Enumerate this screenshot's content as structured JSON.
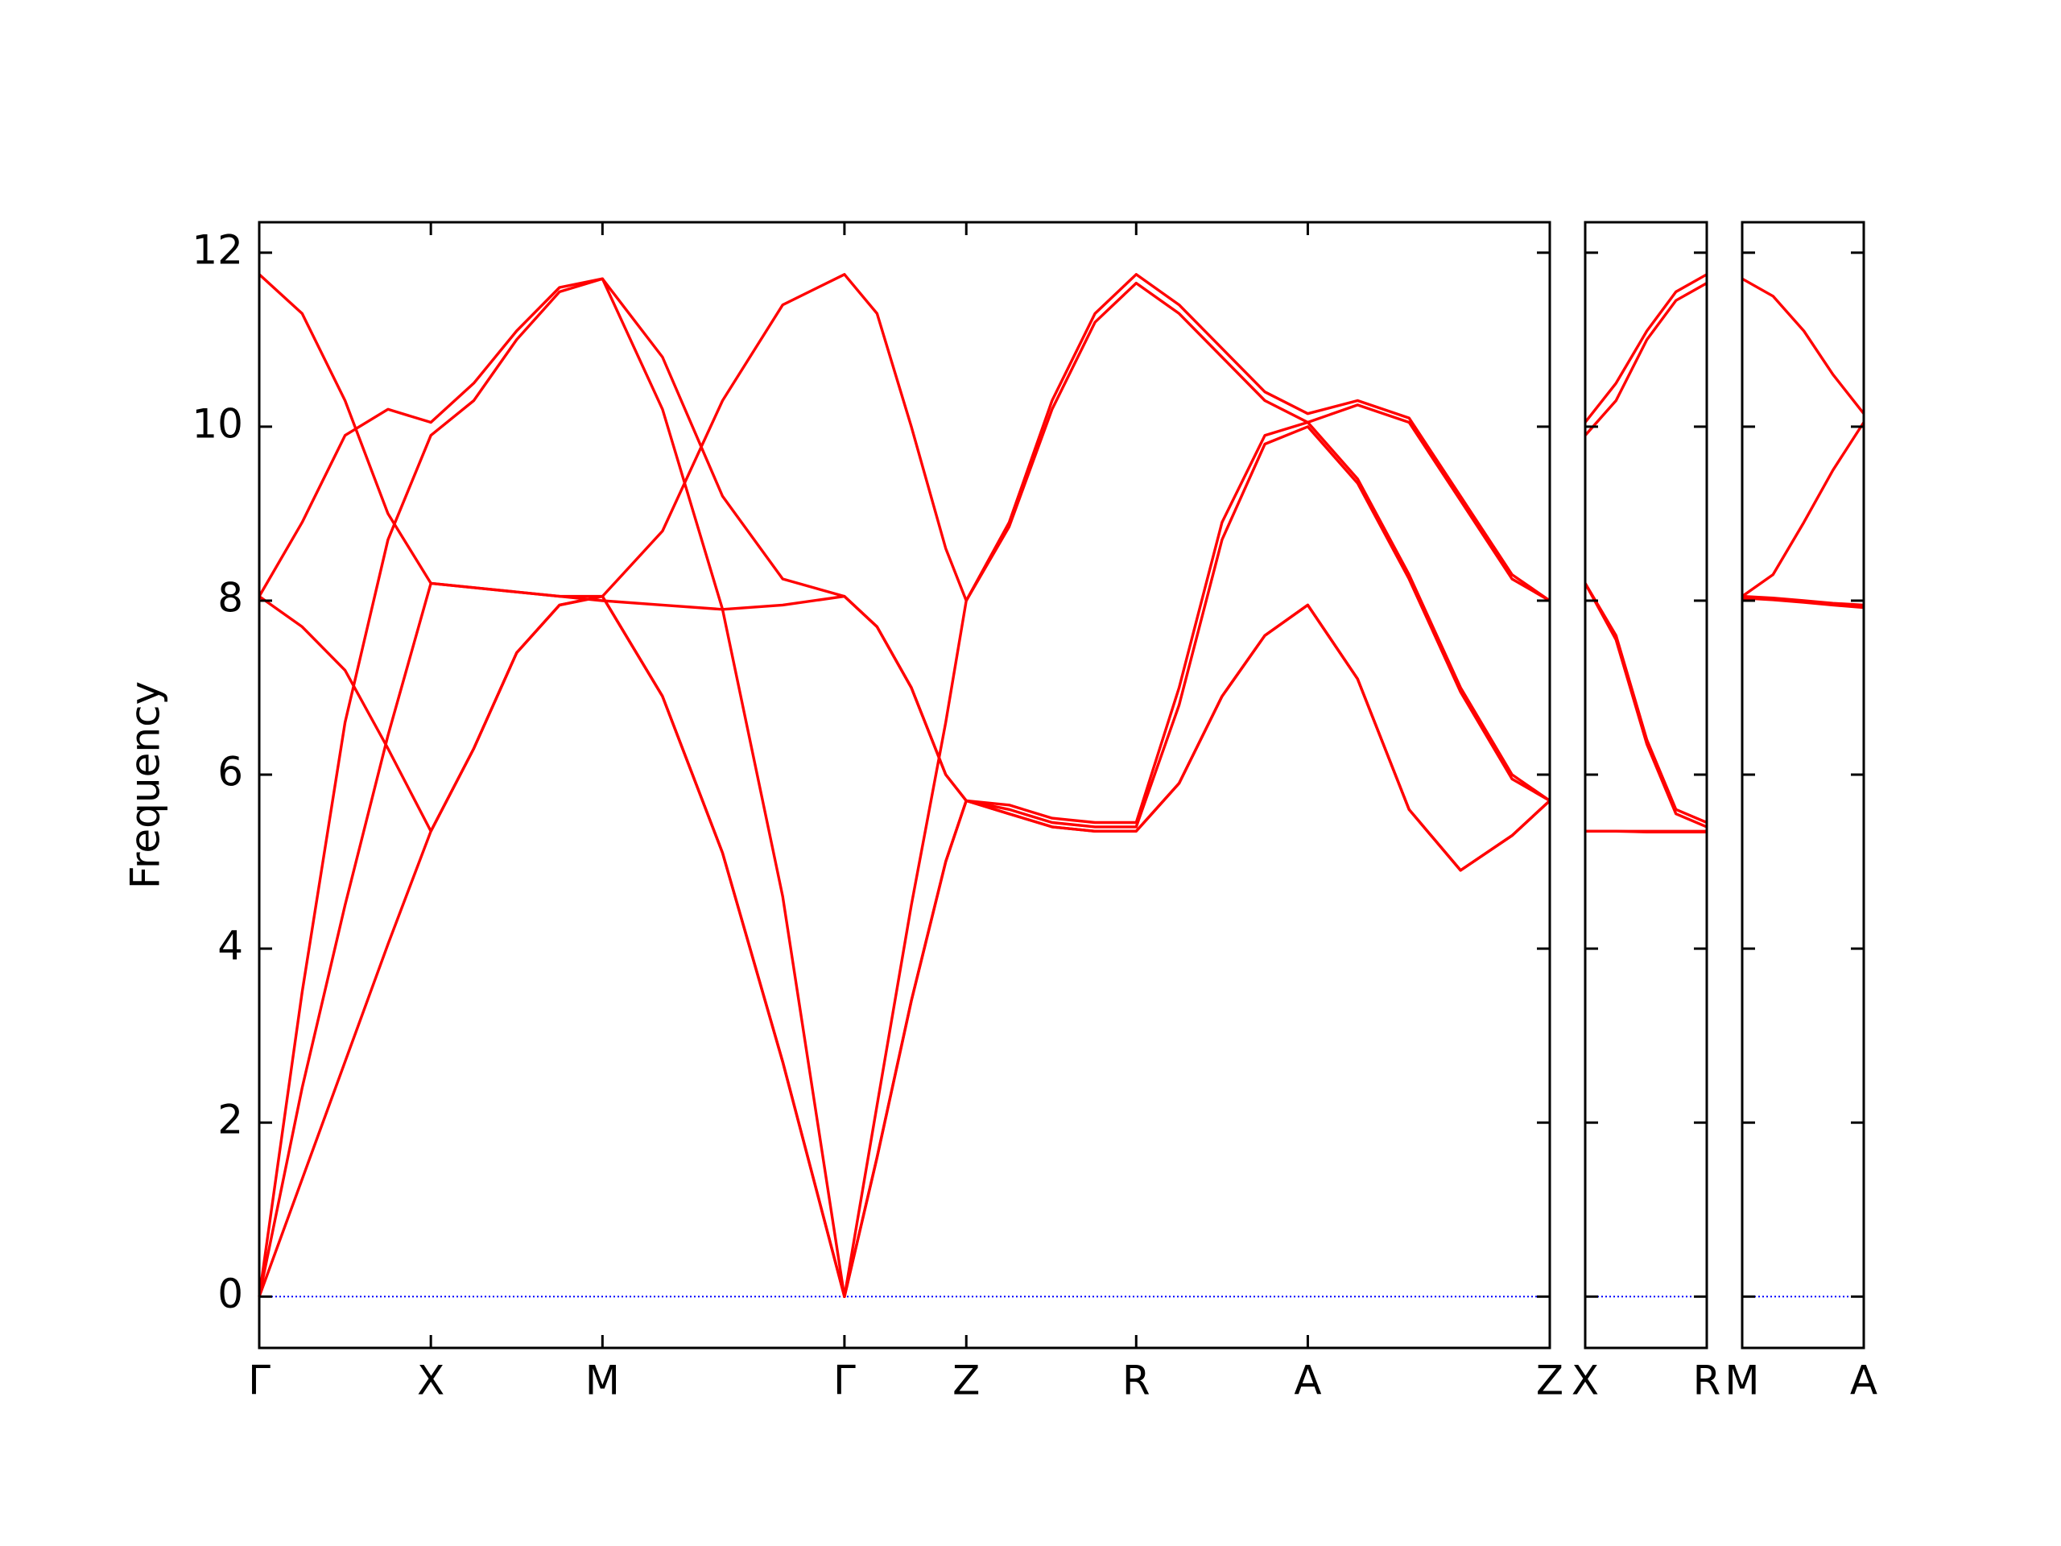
{
  "chart_data": [
    {
      "type": "line",
      "ylabel": "Frequency",
      "xlim": [
        0,
        7.52
      ],
      "ylim": [
        -0.59,
        12.35
      ],
      "xticks": [
        {
          "value": 0,
          "label": "Γ"
        },
        {
          "value": 1,
          "label": "X"
        },
        {
          "value": 2,
          "label": "M"
        },
        {
          "value": 3.41,
          "label": "Γ"
        },
        {
          "value": 4.12,
          "label": "Z"
        },
        {
          "value": 5.11,
          "label": "R"
        },
        {
          "value": 6.11,
          "label": "A"
        },
        {
          "value": 7.52,
          "label": "Z"
        }
      ],
      "yticks": [
        0,
        2,
        4,
        6,
        8,
        10,
        12
      ],
      "show_ytick_labels": true,
      "zero_line": {
        "value": 0,
        "color": "#0000ff"
      },
      "x": [
        0,
        0.25,
        0.5,
        0.75,
        1,
        1.25,
        1.5,
        1.75,
        2,
        2.35,
        2.7,
        3.05,
        3.41,
        3.6,
        3.8,
        4.0,
        4.12,
        4.37,
        4.62,
        4.87,
        5.11,
        5.36,
        5.61,
        5.86,
        6.11,
        6.4,
        6.7,
        7.0,
        7.3,
        7.52
      ],
      "series": [
        {
          "color": "#ff0000",
          "values": [
            11.75,
            11.3,
            10.3,
            9.0,
            8.2,
            8.15,
            8.1,
            8.05,
            8.05,
            8.8,
            10.3,
            11.4,
            11.75,
            11.3,
            10.0,
            8.6,
            8.0,
            8.9,
            10.3,
            11.3,
            11.75,
            11.4,
            10.9,
            10.4,
            10.15,
            10.3,
            10.1,
            9.2,
            8.3,
            8.0
          ]
        },
        {
          "color": "#ff0000",
          "values": [
            8.05,
            8.9,
            9.9,
            10.2,
            10.05,
            10.5,
            11.1,
            11.6,
            11.7,
            10.8,
            9.2,
            8.25,
            8.05,
            7.7,
            7.0,
            6.0,
            5.7,
            5.65,
            5.5,
            5.45,
            5.45,
            7.0,
            8.9,
            9.9,
            10.05,
            9.4,
            8.3,
            7.0,
            6.0,
            5.7
          ]
        },
        {
          "color": "#ff0000",
          "values": [
            8.05,
            7.7,
            7.2,
            6.3,
            5.35,
            6.3,
            7.4,
            7.95,
            8.05,
            6.9,
            5.1,
            2.7,
            0,
            1.6,
            3.4,
            5.0,
            5.7,
            5.55,
            5.4,
            5.35,
            5.35,
            5.9,
            6.9,
            7.6,
            7.95,
            7.1,
            5.6,
            4.9,
            5.3,
            5.7
          ]
        },
        {
          "color": "#ff0000",
          "values": [
            0,
            3.5,
            6.6,
            8.7,
            9.9,
            10.3,
            11.0,
            11.55,
            11.7,
            10.2,
            7.9,
            4.6,
            0,
            2.2,
            4.5,
            6.6,
            8.0,
            8.85,
            10.2,
            11.2,
            11.65,
            11.3,
            10.8,
            10.3,
            10.05,
            10.25,
            10.05,
            9.15,
            8.25,
            8.0
          ]
        },
        {
          "color": "#ff0000",
          "values": [
            0,
            2.4,
            4.5,
            6.45,
            8.2,
            8.15,
            8.1,
            8.05,
            8.0,
            7.95,
            7.9,
            7.95,
            8.05,
            7.7,
            7.0,
            6.0,
            5.7,
            5.6,
            5.45,
            5.4,
            5.4,
            6.8,
            8.7,
            9.8,
            10.0,
            9.35,
            8.25,
            6.95,
            5.95,
            5.7
          ]
        },
        {
          "color": "#ff0000",
          "values": [
            0,
            1.35,
            2.7,
            4.05,
            5.35,
            6.3,
            7.4,
            7.95,
            8.05,
            6.9,
            5.1,
            2.7,
            0,
            1.6,
            3.4,
            5.0,
            5.7,
            5.55,
            5.4,
            5.35,
            5.35,
            5.9,
            6.9,
            7.6,
            7.95,
            7.1,
            5.6,
            4.9,
            5.3,
            5.7
          ]
        }
      ]
    },
    {
      "type": "line",
      "xlim": [
        0,
        0.71
      ],
      "ylim": [
        -0.59,
        12.35
      ],
      "xticks": [
        {
          "value": 0,
          "label": "X"
        },
        {
          "value": 0.71,
          "label": "R"
        }
      ],
      "yticks": [
        0,
        2,
        4,
        6,
        8,
        10,
        12
      ],
      "show_ytick_labels": false,
      "zero_line": {
        "value": 0,
        "color": "#0000ff"
      },
      "x": [
        0,
        0.18,
        0.36,
        0.53,
        0.71
      ],
      "series": [
        {
          "color": "#ff0000",
          "values": [
            10.05,
            10.5,
            11.1,
            11.55,
            11.75
          ]
        },
        {
          "color": "#ff0000",
          "values": [
            9.9,
            10.3,
            11.0,
            11.45,
            11.65
          ]
        },
        {
          "color": "#ff0000",
          "values": [
            8.2,
            7.6,
            6.4,
            5.6,
            5.45
          ]
        },
        {
          "color": "#ff0000",
          "values": [
            8.2,
            7.55,
            6.35,
            5.55,
            5.4
          ]
        },
        {
          "color": "#ff0000",
          "values": [
            5.35,
            5.35,
            5.35,
            5.35,
            5.35
          ]
        },
        {
          "color": "#ff0000",
          "values": [
            5.35,
            5.35,
            5.34,
            5.34,
            5.34
          ]
        }
      ]
    },
    {
      "type": "line",
      "xlim": [
        0,
        0.71
      ],
      "ylim": [
        -0.59,
        12.35
      ],
      "xticks": [
        {
          "value": 0,
          "label": "M"
        },
        {
          "value": 0.71,
          "label": "A"
        }
      ],
      "yticks": [
        0,
        2,
        4,
        6,
        8,
        10,
        12
      ],
      "show_ytick_labels": false,
      "zero_line": {
        "value": 0,
        "color": "#0000ff"
      },
      "x": [
        0,
        0.18,
        0.36,
        0.53,
        0.71
      ],
      "series": [
        {
          "color": "#ff0000",
          "values": [
            11.7,
            11.5,
            11.1,
            10.6,
            10.15
          ]
        },
        {
          "color": "#ff0000",
          "values": [
            8.05,
            8.3,
            8.9,
            9.5,
            10.05
          ]
        },
        {
          "color": "#ff0000",
          "values": [
            8.05,
            8.03,
            8.0,
            7.97,
            7.95
          ]
        },
        {
          "color": "#ff0000",
          "values": [
            8.05,
            8.02,
            7.99,
            7.96,
            7.94
          ]
        },
        {
          "color": "#ff0000",
          "values": [
            8.04,
            8.02,
            7.99,
            7.96,
            7.93
          ]
        },
        {
          "color": "#ff0000",
          "values": [
            8.03,
            8.01,
            7.98,
            7.95,
            7.92
          ]
        }
      ]
    }
  ]
}
